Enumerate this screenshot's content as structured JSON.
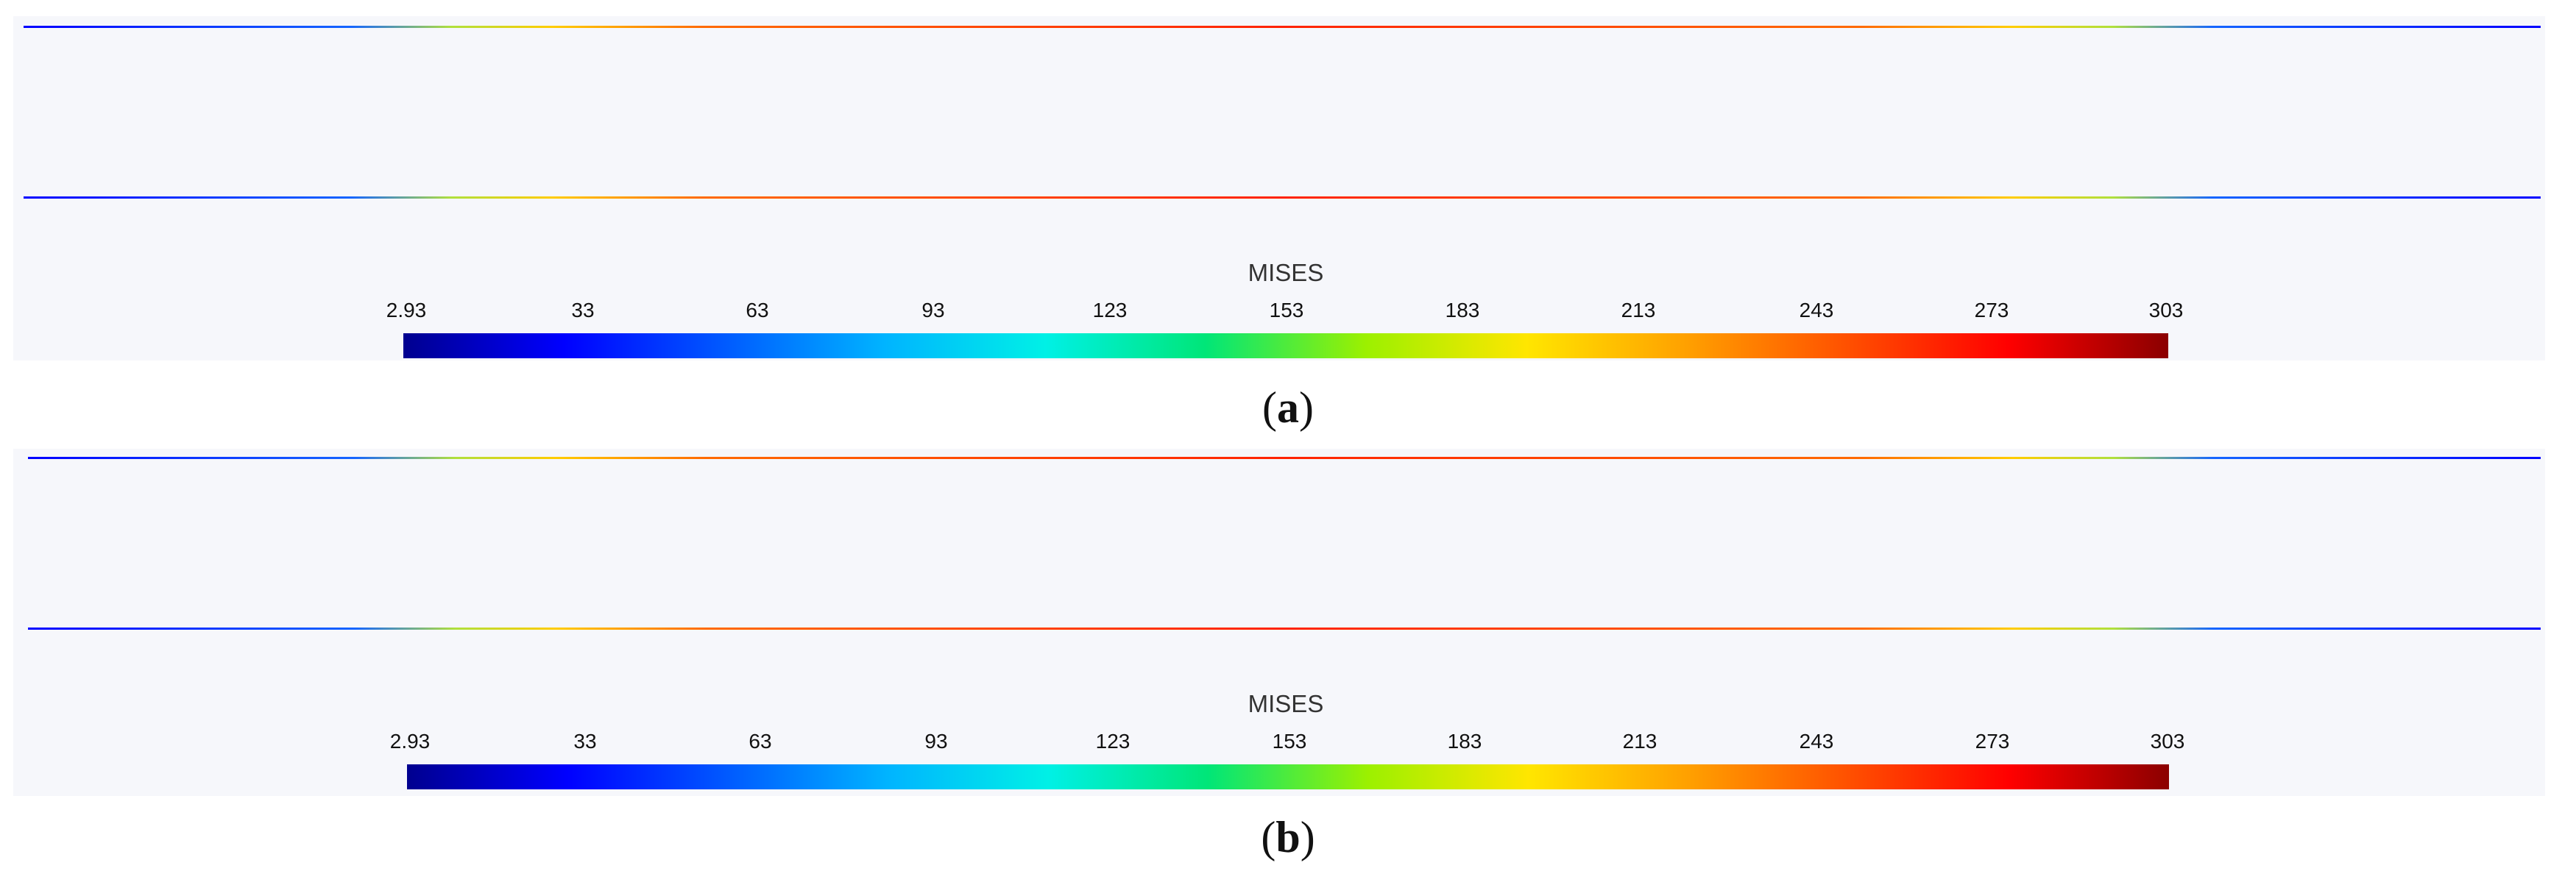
{
  "stripe_colors": [
    "#0000ff",
    "#1565ff",
    "#b0e03c",
    "#ffcc00",
    "#ff6a00",
    "#ff2200",
    "#ff6a00",
    "#ffcc00",
    "#b0e03c",
    "#1565ff",
    "#0000ff"
  ],
  "colormap": [
    "#00008f",
    "#0000ff",
    "#005aff",
    "#00b4ff",
    "#00f0e6",
    "#00e678",
    "#9cf000",
    "#ffe600",
    "#ffa000",
    "#ff5000",
    "#ff0000",
    "#8b0000"
  ],
  "panels": [
    {
      "legend": {
        "title": "MISES",
        "ticks": [
          "2.93",
          "33",
          "63",
          "93",
          "123",
          "153",
          "183",
          "213",
          "243",
          "273",
          "303"
        ]
      },
      "caption": {
        "open": "(",
        "letter": "a",
        "close": ")"
      }
    },
    {
      "legend": {
        "title": "MISES",
        "ticks": [
          "2.93",
          "33",
          "63",
          "93",
          "123",
          "153",
          "183",
          "213",
          "243",
          "273",
          "303"
        ]
      },
      "caption": {
        "open": "(",
        "letter": "b",
        "close": ")"
      }
    }
  ]
}
